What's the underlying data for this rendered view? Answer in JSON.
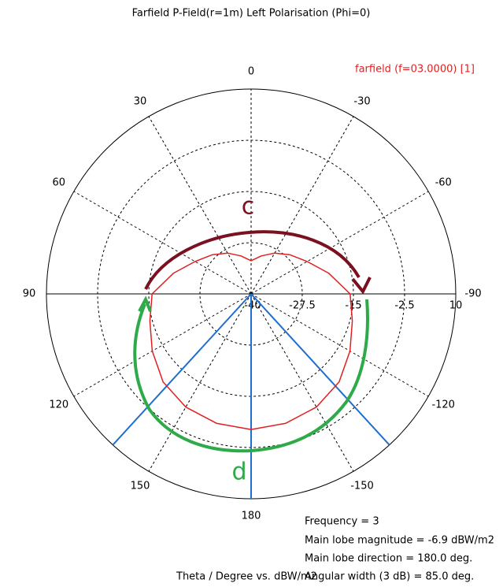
{
  "chart_data": {
    "type": "polar",
    "title": "Farfield P-Field(r=1m) Left Polarisation (Phi=0)",
    "x": [
      -180,
      -165,
      -150,
      -135,
      -120,
      -105,
      -90,
      -75,
      -60,
      -45,
      -30,
      -15,
      0,
      15,
      30,
      45,
      60,
      75,
      90,
      105,
      120,
      135,
      150,
      165,
      180
    ],
    "series": [
      {
        "name": "farfield (f=03.0000) [1]",
        "color": "#e02020",
        "values": [
          -6.9,
          -7.3,
          -8.1,
          -9.6,
          -12.1,
          -14.4,
          -15.8,
          -20.4,
          -24.2,
          -26.5,
          -28.5,
          -30.4,
          -31.9,
          -30.4,
          -28.5,
          -26.5,
          -24.2,
          -20.4,
          -15.8,
          -14.4,
          -12.1,
          -9.6,
          -8.1,
          -7.3,
          -6.9
        ]
      }
    ],
    "rlim": [
      -40,
      10
    ],
    "rticks": [
      -40,
      -27.5,
      -15,
      -2.5,
      10
    ],
    "thetaticks": [
      0,
      30,
      60,
      90,
      120,
      150,
      180,
      -150,
      -120,
      -90,
      -60,
      -30
    ],
    "markers": {
      "color": "#1f6fd0",
      "angles": [
        137.5,
        180,
        -137.5
      ]
    },
    "grid": true,
    "xlabel": "Theta / Degree vs. dBW/m2",
    "info": [
      "Frequency = 3",
      "Main lobe magnitude =  -6.9 dBW/m2",
      "Main lobe direction =  180.0 deg.",
      "Angular width (3 dB) =   85.0 deg."
    ],
    "annotations": [
      "c",
      "d"
    ]
  }
}
